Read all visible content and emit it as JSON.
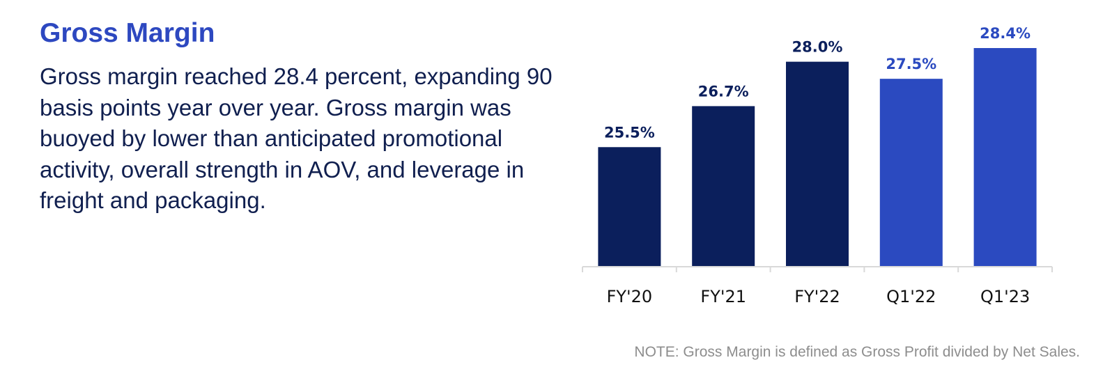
{
  "heading": "Gross Margin",
  "description": "Gross margin reached 28.4 percent, expanding 90 basis points year over year. Gross margin was buoyed by lower than anticipated promotional activity, overall strength in AOV, and leverage in freight and packaging.",
  "note": "NOTE: Gross Margin is defined as Gross Profit divided by Net Sales.",
  "colors": {
    "annual": "#0b1f5c",
    "quarterly": "#2b4ac0",
    "heading": "#2d48c0",
    "text": "#101f4f",
    "note": "#8d8d8d"
  },
  "chart_data": {
    "type": "bar",
    "categories": [
      "FY'20",
      "FY'21",
      "FY'22",
      "Q1'22",
      "Q1'23"
    ],
    "values": [
      25.5,
      26.7,
      28.0,
      27.5,
      28.4
    ],
    "data_labels": [
      "25.5%",
      "26.7%",
      "28.0%",
      "27.5%",
      "28.4%"
    ],
    "bar_color_groups": [
      "annual",
      "annual",
      "annual",
      "quarterly",
      "quarterly"
    ],
    "title": "",
    "xlabel": "",
    "ylabel": "",
    "grid": false,
    "legend": "none"
  }
}
